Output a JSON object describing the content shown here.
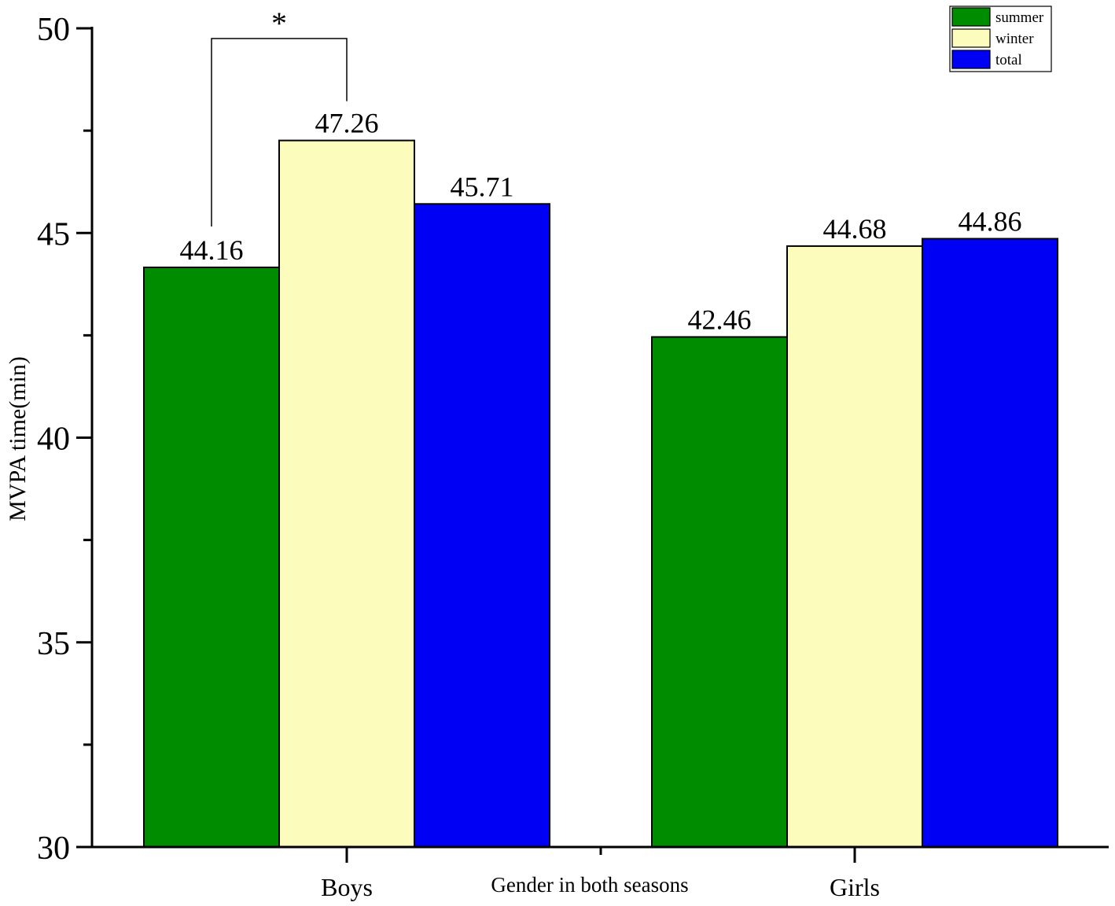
{
  "chart_data": {
    "type": "bar",
    "categories": [
      "Boys",
      "Girls"
    ],
    "series": [
      {
        "name": "summer",
        "values": [
          44.16,
          42.46
        ],
        "color": "#008C00"
      },
      {
        "name": "winter",
        "values": [
          47.26,
          44.68
        ],
        "color": "#FCFCBC"
      },
      {
        "name": "total",
        "values": [
          45.71,
          44.86
        ],
        "color": "#0000F5"
      }
    ],
    "data_labels": [
      [
        "44.16",
        "42.46"
      ],
      [
        "47.26",
        "44.68"
      ],
      [
        "45.71",
        "44.86"
      ]
    ],
    "xlabel": "Gender in both seasons",
    "ylabel": "MVPA time(min)",
    "ylim": [
      30,
      50
    ],
    "y_ticks": [
      30,
      35,
      40,
      45,
      50
    ],
    "y_tick_labels": [
      "30",
      "35",
      "40",
      "45",
      "50"
    ],
    "grid": false,
    "legend_position": "top-right",
    "significance": {
      "label": "*",
      "between": [
        "Boys summer",
        "Boys winter"
      ]
    }
  }
}
